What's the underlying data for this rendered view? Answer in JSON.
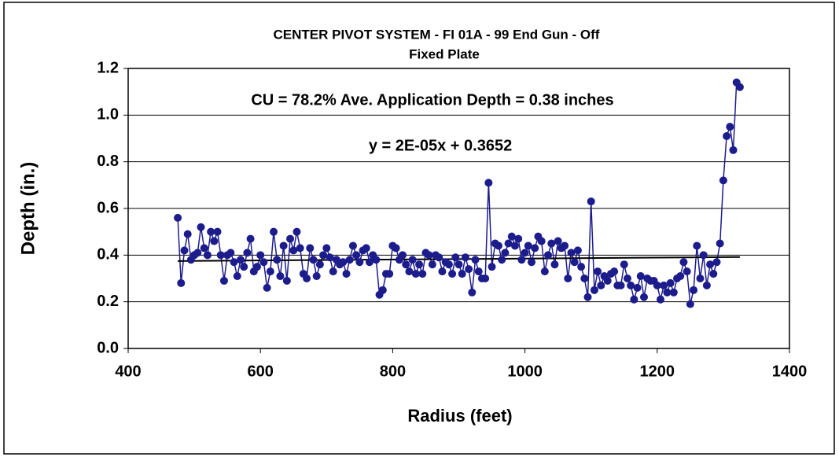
{
  "chart_data": {
    "type": "line",
    "title": "CENTER PIVOT SYSTEM - FI 01A - 99  End Gun - Off",
    "subtitle": "Fixed Plate",
    "annotations": [
      "CU = 78.2% Ave. Application Depth = 0.38 inches",
      "y = 2E-05x + 0.3652"
    ],
    "x_label": "Radius (feet)",
    "y_label": "Depth (in.)",
    "x": [
      475,
      480,
      485,
      490,
      495,
      500,
      505,
      510,
      515,
      520,
      525,
      530,
      535,
      540,
      545,
      550,
      555,
      560,
      565,
      570,
      575,
      580,
      585,
      590,
      595,
      600,
      605,
      610,
      615,
      620,
      625,
      630,
      635,
      640,
      645,
      650,
      655,
      660,
      665,
      670,
      675,
      680,
      685,
      690,
      695,
      700,
      705,
      710,
      715,
      720,
      725,
      730,
      735,
      740,
      745,
      750,
      755,
      760,
      765,
      770,
      775,
      780,
      785,
      790,
      795,
      800,
      805,
      810,
      815,
      820,
      825,
      830,
      835,
      840,
      845,
      850,
      855,
      860,
      865,
      870,
      875,
      880,
      885,
      890,
      895,
      900,
      905,
      910,
      915,
      920,
      925,
      930,
      935,
      940,
      945,
      950,
      955,
      960,
      965,
      970,
      975,
      980,
      985,
      990,
      995,
      1000,
      1005,
      1010,
      1015,
      1020,
      1025,
      1030,
      1035,
      1040,
      1045,
      1050,
      1055,
      1060,
      1065,
      1070,
      1075,
      1080,
      1085,
      1090,
      1095,
      1100,
      1105,
      1110,
      1115,
      1120,
      1125,
      1130,
      1135,
      1140,
      1145,
      1150,
      1155,
      1160,
      1165,
      1170,
      1175,
      1180,
      1185,
      1190,
      1195,
      1200,
      1205,
      1210,
      1215,
      1220,
      1225,
      1230,
      1235,
      1240,
      1245,
      1250,
      1255,
      1260,
      1265,
      1270,
      1275,
      1280,
      1285,
      1290,
      1295,
      1300,
      1305,
      1310,
      1315,
      1320,
      1325
    ],
    "series": [
      {
        "color": "#1c1c8c",
        "values": [
          0.56,
          0.28,
          0.42,
          0.49,
          0.38,
          0.4,
          0.41,
          0.52,
          0.43,
          0.4,
          0.5,
          0.46,
          0.5,
          0.4,
          0.29,
          0.4,
          0.41,
          0.37,
          0.31,
          0.38,
          0.35,
          0.41,
          0.47,
          0.33,
          0.35,
          0.4,
          0.37,
          0.26,
          0.33,
          0.5,
          0.38,
          0.31,
          0.44,
          0.29,
          0.47,
          0.42,
          0.5,
          0.43,
          0.32,
          0.3,
          0.43,
          0.38,
          0.31,
          0.36,
          0.4,
          0.43,
          0.39,
          0.33,
          0.38,
          0.36,
          0.37,
          0.32,
          0.38,
          0.44,
          0.4,
          0.37,
          0.42,
          0.43,
          0.37,
          0.4,
          0.38,
          0.23,
          0.25,
          0.32,
          0.32,
          0.44,
          0.43,
          0.38,
          0.4,
          0.36,
          0.33,
          0.38,
          0.32,
          0.36,
          0.32,
          0.41,
          0.4,
          0.36,
          0.4,
          0.39,
          0.33,
          0.37,
          0.36,
          0.32,
          0.39,
          0.36,
          0.32,
          0.39,
          0.34,
          0.24,
          0.38,
          0.33,
          0.3,
          0.3,
          0.71,
          0.35,
          0.45,
          0.44,
          0.38,
          0.41,
          0.45,
          0.48,
          0.44,
          0.47,
          0.38,
          0.41,
          0.44,
          0.37,
          0.43,
          0.48,
          0.46,
          0.33,
          0.4,
          0.45,
          0.36,
          0.46,
          0.43,
          0.44,
          0.3,
          0.41,
          0.37,
          0.42,
          0.35,
          0.3,
          0.22,
          0.63,
          0.25,
          0.33,
          0.27,
          0.31,
          0.29,
          0.32,
          0.33,
          0.27,
          0.27,
          0.36,
          0.3,
          0.27,
          0.21,
          0.26,
          0.31,
          0.22,
          0.3,
          0.29,
          0.29,
          0.27,
          0.21,
          0.27,
          0.24,
          0.28,
          0.24,
          0.3,
          0.31,
          0.37,
          0.33,
          0.19,
          0.25,
          0.44,
          0.3,
          0.4,
          0.27,
          0.36,
          0.32,
          0.37,
          0.45,
          0.72,
          0.91,
          0.95,
          0.85,
          1.14,
          1.12
        ]
      }
    ],
    "trendline": {
      "color": "#000000",
      "x": [
        475,
        1325
      ],
      "values": [
        0.3747,
        0.3917
      ]
    },
    "xlim": [
      400,
      1400
    ],
    "xticks": [
      400,
      600,
      800,
      1000,
      1200,
      1400
    ],
    "ylim": [
      0,
      1.2
    ],
    "yticks": [
      {
        "value": 0,
        "label": "0.0"
      },
      0.2,
      0.4,
      0.6,
      0.8,
      {
        "value": 1,
        "label": "1.0"
      },
      1.2
    ],
    "grid": true
  }
}
